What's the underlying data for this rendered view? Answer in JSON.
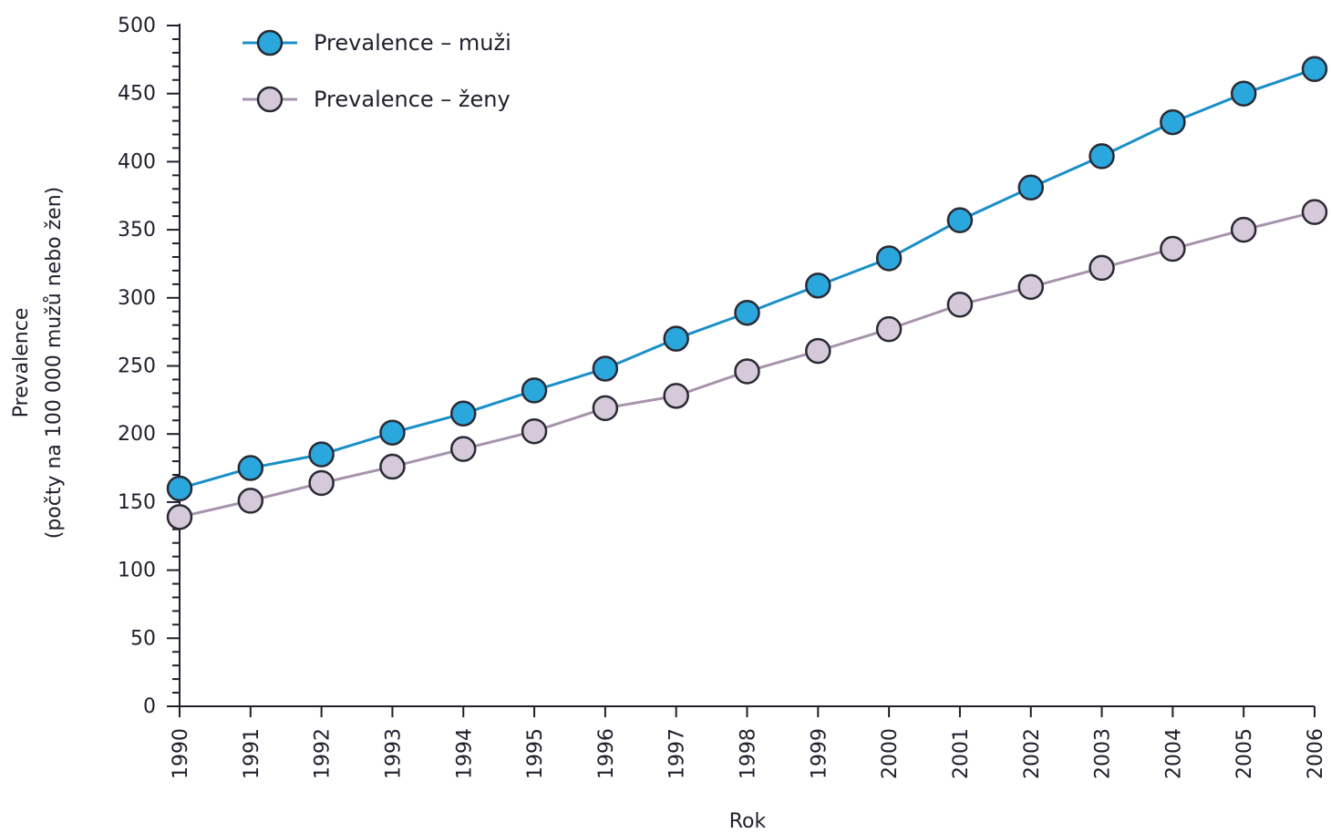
{
  "chart_data": {
    "type": "line",
    "title": "",
    "xlabel": "Rok",
    "ylabel_line1": "Prevalence",
    "ylabel_line2": "(počty na 100 000 mužů nebo žen)",
    "x": [
      "1990",
      "1991",
      "1992",
      "1993",
      "1994",
      "1995",
      "1996",
      "1997",
      "1998",
      "1999",
      "2000",
      "2001",
      "2002",
      "2003",
      "2004",
      "2005",
      "2006"
    ],
    "ylim": [
      0,
      500
    ],
    "yticks": [
      0,
      50,
      100,
      150,
      200,
      250,
      300,
      350,
      400,
      450,
      500
    ],
    "legend_position": "top-left",
    "grid": false,
    "series": [
      {
        "name": "Prevalence – muži",
        "line_color": "#1a8fc8",
        "marker_color": "#2aa7dd",
        "values": [
          160,
          175,
          185,
          201,
          215,
          232,
          248,
          270,
          289,
          309,
          329,
          357,
          381,
          404,
          429,
          450,
          468
        ]
      },
      {
        "name": "Prevalence – ženy",
        "line_color": "#a893ad",
        "marker_color": "#d6c9da",
        "values": [
          139,
          151,
          164,
          176,
          189,
          202,
          219,
          228,
          246,
          261,
          277,
          295,
          308,
          322,
          336,
          350,
          363
        ]
      }
    ]
  }
}
